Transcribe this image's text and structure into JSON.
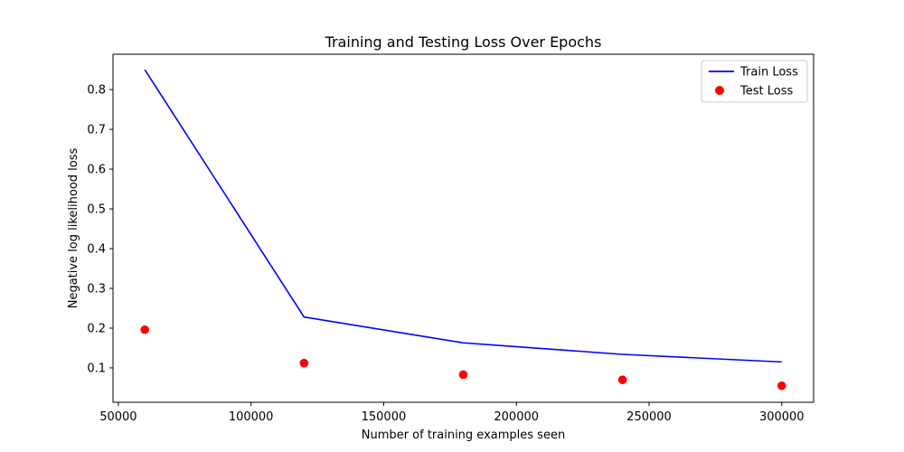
{
  "chart_data": {
    "type": "line",
    "title": "Training and Testing Loss Over Epochs",
    "xlabel": "Number of training examples seen",
    "ylabel": "Negative log likelihood loss",
    "xlim": [
      48000,
      312000
    ],
    "ylim": [
      0.0135,
      0.889
    ],
    "xticks": [
      50000,
      100000,
      150000,
      200000,
      250000,
      300000
    ],
    "xtick_labels": [
      "50000",
      "100000",
      "150000",
      "200000",
      "250000",
      "300000"
    ],
    "yticks": [
      0.1,
      0.2,
      0.3,
      0.4,
      0.5,
      0.6,
      0.7,
      0.8
    ],
    "ytick_labels": [
      "0.1",
      "0.2",
      "0.3",
      "0.4",
      "0.5",
      "0.6",
      "0.7",
      "0.8"
    ],
    "grid": false,
    "legend_position": "top-right",
    "series": [
      {
        "name": "Train Loss",
        "kind": "line",
        "color": "#0000ff",
        "x": [
          60000,
          120000,
          180000,
          240000,
          300000
        ],
        "y": [
          0.85,
          0.228,
          0.163,
          0.134,
          0.115
        ]
      },
      {
        "name": "Test Loss",
        "kind": "scatter",
        "color": "#ff0000",
        "x": [
          60000,
          120000,
          180000,
          240000,
          300000
        ],
        "y": [
          0.196,
          0.112,
          0.083,
          0.07,
          0.055
        ]
      }
    ]
  }
}
